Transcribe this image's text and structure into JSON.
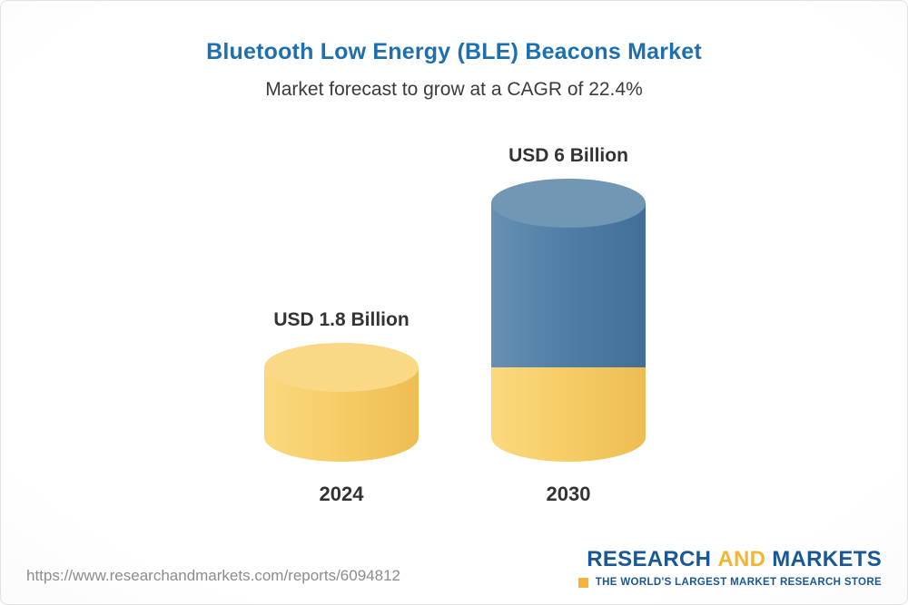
{
  "header": {
    "title": "Bluetooth Low Energy (BLE) Beacons Market",
    "subtitle": "Market forecast to grow at a CAGR of 22.4%"
  },
  "chart_data": {
    "type": "bar",
    "subtype": "3d-cylinder",
    "title": "Bluetooth Low Energy (BLE) Beacons Market",
    "subtitle_annotation": "Market forecast to grow at a CAGR of 22.4%",
    "categories": [
      "2024",
      "2030"
    ],
    "values": [
      1.8,
      6
    ],
    "value_labels": [
      "USD 1.8 Billion",
      "USD 6 Billion"
    ],
    "unit": "USD Billion",
    "cagr_percent": 22.4,
    "xlabel": "",
    "ylabel": "",
    "ylim": [
      0,
      6
    ],
    "grid": false,
    "legend": false,
    "stacked_base_value": 1.8,
    "bar_colors": [
      {
        "body": "#F6CC66",
        "light": "#FAD97E",
        "dark": "#EDBD52",
        "top": "#FAD885"
      },
      {
        "body": "#4F7DA6",
        "light": "#6690B3",
        "dark": "#426F97",
        "top": "#7197B5"
      }
    ]
  },
  "colors": {
    "title_blue": "#1E6FB0",
    "logo_blue": "#1A5795",
    "logo_gold": "#F2B634",
    "text_dark": "#333333",
    "url_gray": "#8C8C8C"
  },
  "footer": {
    "url": "https://www.researchandmarkets.com/reports/6094812",
    "logo": {
      "part1": "RESEARCH",
      "part2": "AND",
      "part3": "MARKETS",
      "tagline": "THE WORLD'S LARGEST MARKET RESEARCH STORE"
    }
  }
}
